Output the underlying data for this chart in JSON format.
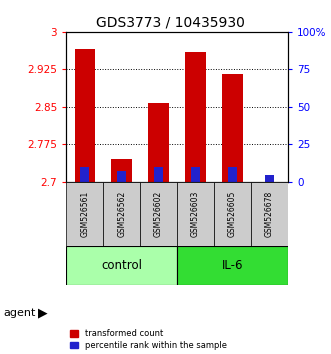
{
  "title": "GDS3773 / 10435930",
  "samples": [
    "GSM526561",
    "GSM526562",
    "GSM526602",
    "GSM526603",
    "GSM526605",
    "GSM526678"
  ],
  "transformed_counts": [
    2.965,
    2.745,
    2.858,
    2.96,
    2.915,
    2.7
  ],
  "percentile_ranks_pct": [
    10,
    7,
    10,
    10,
    10,
    5
  ],
  "ylim_left": [
    2.7,
    3.0
  ],
  "yticks_left": [
    2.7,
    2.775,
    2.85,
    2.925,
    3.0
  ],
  "ytick_labels_left": [
    "2.7",
    "2.775",
    "2.85",
    "2.925",
    "3"
  ],
  "yticks_right": [
    0,
    25,
    50,
    75,
    100
  ],
  "ytick_labels_right": [
    "0",
    "25",
    "50",
    "75",
    "100%"
  ],
  "ylim_right": [
    0,
    100
  ],
  "bar_bottom": 2.7,
  "groups": [
    {
      "label": "control",
      "span": [
        0,
        3
      ],
      "color": "#AAFFAA"
    },
    {
      "label": "IL-6",
      "span": [
        3,
        6
      ],
      "color": "#33DD33"
    }
  ],
  "bar_color_red": "#CC0000",
  "bar_color_blue": "#2222CC",
  "bar_width": 0.55,
  "bg_color": "#FFFFFF",
  "sample_bg_color": "#CCCCCC",
  "legend_labels": [
    "transformed count",
    "percentile rank within the sample"
  ]
}
